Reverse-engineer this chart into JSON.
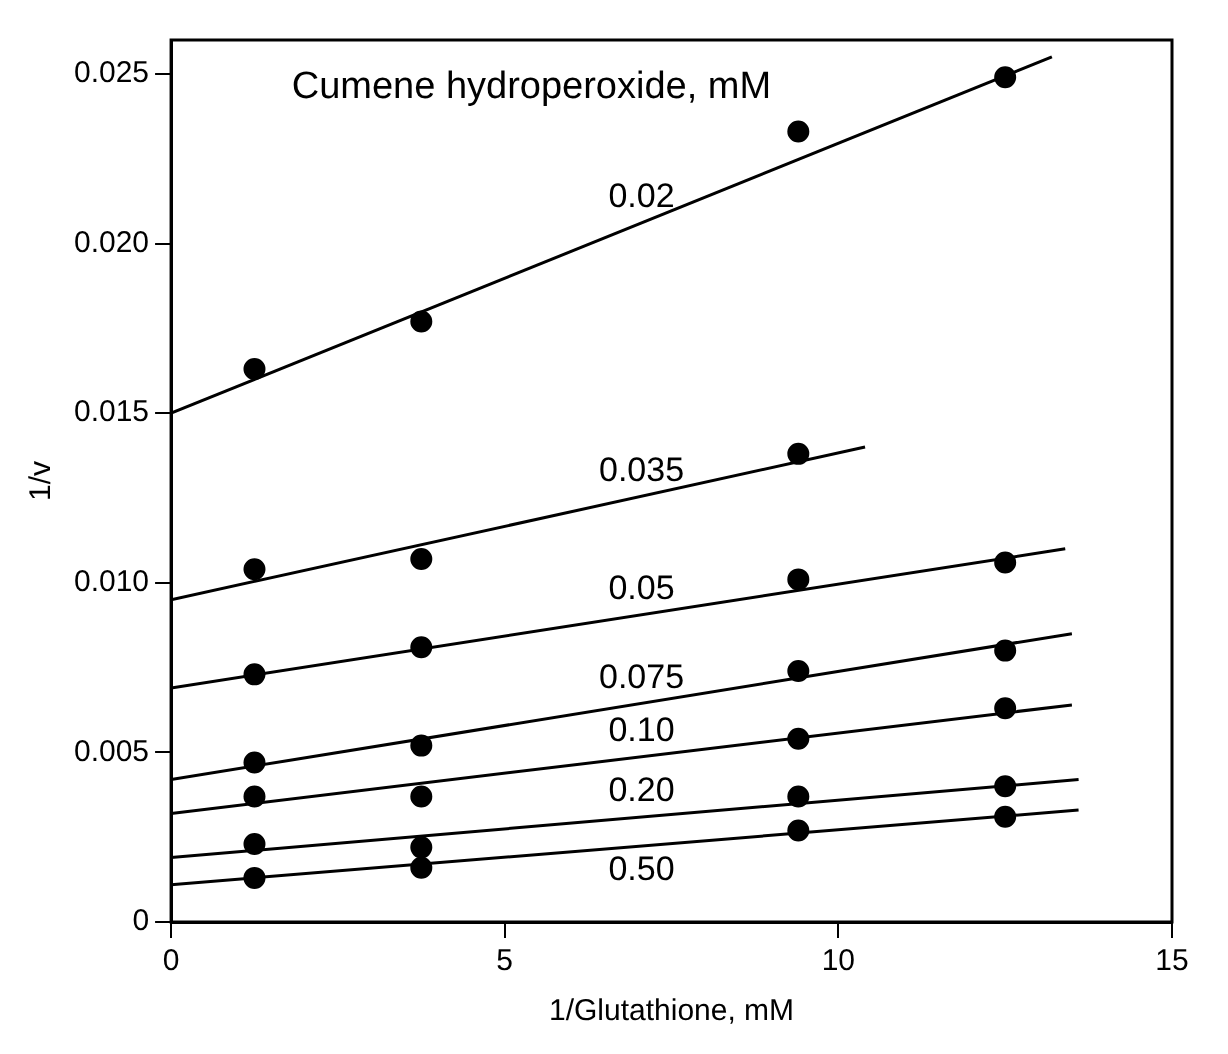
{
  "chart_data": {
    "type": "scatter",
    "xlabel": "1/Glutathione, mM",
    "ylabel": "1/v",
    "legend_title": "Cumene hydroperoxide, mM",
    "xlim": [
      0,
      15
    ],
    "xticks": [
      0,
      5,
      10,
      15
    ],
    "ylim": [
      0,
      0.026
    ],
    "yticks": [
      0,
      {
        "value": 0.005,
        "label": "0.005"
      },
      {
        "value": 0.01,
        "label": "0.010"
      },
      {
        "value": 0.015,
        "label": "0.015"
      },
      {
        "value": 0.02,
        "label": "0.020"
      },
      {
        "value": 0.025,
        "label": "0.025"
      }
    ],
    "grid": false,
    "legend": false,
    "marker": "circle",
    "series": [
      {
        "color": "#000000",
        "x": [
          1.25,
          3.75,
          9.4,
          12.5
        ],
        "values": [
          0.0163,
          0.0177,
          0.0233,
          0.0249
        ]
      },
      {
        "name": "0.02",
        "type": "line",
        "marker": "none",
        "color": "#000000",
        "x": [
          0,
          13.2
        ],
        "values": [
          0.015,
          0.0255
        ]
      },
      {
        "color": "#000000",
        "x": [
          1.25,
          3.75,
          9.4
        ],
        "values": [
          0.0104,
          0.0107,
          0.0138
        ]
      },
      {
        "name": "0.035",
        "type": "line",
        "marker": "none",
        "color": "#000000",
        "x": [
          0,
          10.4
        ],
        "values": [
          0.0095,
          0.014
        ]
      },
      {
        "color": "#000000",
        "x": [
          1.25,
          3.75,
          9.4,
          12.5
        ],
        "values": [
          0.0073,
          0.0081,
          0.0101,
          0.0106
        ]
      },
      {
        "name": "0.05",
        "type": "line",
        "marker": "none",
        "color": "#000000",
        "x": [
          0,
          13.4
        ],
        "values": [
          0.0069,
          0.011
        ]
      },
      {
        "color": "#000000",
        "x": [
          1.25,
          3.75,
          9.4,
          12.5
        ],
        "values": [
          0.0047,
          0.0052,
          0.0074,
          0.008
        ]
      },
      {
        "name": "0.075",
        "type": "line",
        "marker": "none",
        "color": "#000000",
        "x": [
          0,
          13.5
        ],
        "values": [
          0.0042,
          0.0085
        ]
      },
      {
        "color": "#000000",
        "x": [
          1.25,
          3.75,
          9.4,
          12.5
        ],
        "values": [
          0.0037,
          0.0037,
          0.0054,
          0.0063
        ]
      },
      {
        "name": "0.10",
        "type": "line",
        "marker": "none",
        "color": "#000000",
        "x": [
          0,
          13.5
        ],
        "values": [
          0.0032,
          0.0064
        ]
      },
      {
        "color": "#000000",
        "x": [
          1.25,
          3.75,
          9.4,
          12.5
        ],
        "values": [
          0.0023,
          0.0022,
          0.0037,
          0.004
        ]
      },
      {
        "name": "0.20",
        "type": "line",
        "marker": "none",
        "color": "#000000",
        "x": [
          0,
          13.6
        ],
        "values": [
          0.0019,
          0.0042
        ]
      },
      {
        "color": "#000000",
        "x": [
          1.25,
          3.75,
          9.4,
          12.5
        ],
        "values": [
          0.0013,
          0.0016,
          0.0027,
          0.0031
        ]
      },
      {
        "name": "0.50",
        "type": "line",
        "marker": "none",
        "color": "#000000",
        "x": [
          0,
          13.6
        ],
        "values": [
          0.0011,
          0.0033
        ]
      }
    ]
  }
}
